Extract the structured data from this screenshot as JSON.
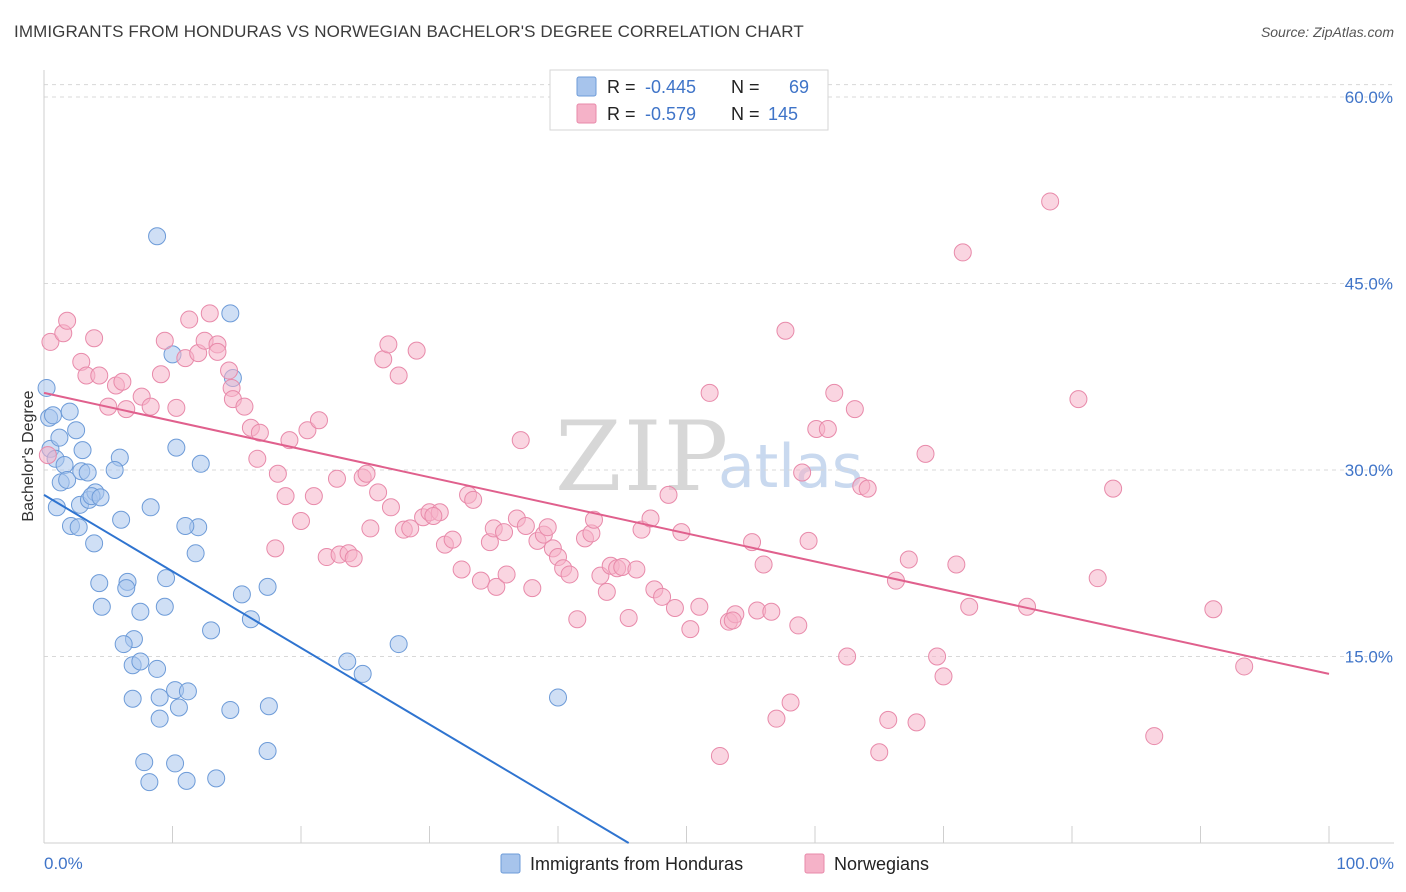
{
  "header": {
    "title": "IMMIGRANTS FROM HONDURAS VS NORWEGIAN BACHELOR'S DEGREE CORRELATION CHART",
    "source": "Source: ZipAtlas.com"
  },
  "watermark": {
    "zip": "ZIP",
    "atlas": "atlas"
  },
  "legend": {
    "r_label": "R =",
    "n_label": "N =",
    "rows": [
      {
        "r": "-0.445",
        "n": "69",
        "color": "#a7c4ec"
      },
      {
        "r": "-0.579",
        "n": "145",
        "color": "#f5b2c8"
      }
    ]
  },
  "colors": {
    "blue_fill": "#a7c4ec",
    "blue_stroke": "#6d9bd8",
    "blue_line": "#2f74d0",
    "pink_fill": "#f5b2c8",
    "pink_stroke": "#e88aaa",
    "pink_line": "#e0608d",
    "label_blue": "#3f74c8",
    "grid": "#d8d8d8"
  },
  "chart_data": {
    "type": "scatter",
    "title": "IMMIGRANTS FROM HONDURAS VS NORWEGIAN BACHELOR'S DEGREE CORRELATION CHART",
    "xlabel": "",
    "ylabel": "Bachelor's Degree",
    "xlim": [
      0,
      100
    ],
    "ylim": [
      0,
      61
    ],
    "x_tick_labels": [
      "0.0%",
      "100.0%"
    ],
    "y_ticks": [
      15,
      30,
      45,
      60
    ],
    "y_tick_labels": [
      "15.0%",
      "30.0%",
      "45.0%",
      "60.0%"
    ],
    "legend_position": "top-center",
    "series": [
      {
        "name": "Immigrants from Honduras",
        "color": "#a7c4ec",
        "trend": {
          "x": [
            0,
            45.5
          ],
          "y": [
            28,
            0
          ]
        },
        "points": [
          [
            0.2,
            36.6
          ],
          [
            0.4,
            34.2
          ],
          [
            0.7,
            34.4
          ],
          [
            0.5,
            31.7
          ],
          [
            0.9,
            30.9
          ],
          [
            1.2,
            32.6
          ],
          [
            1.6,
            30.4
          ],
          [
            1.3,
            29.0
          ],
          [
            1.8,
            29.2
          ],
          [
            1.0,
            27.0
          ],
          [
            2.0,
            34.7
          ],
          [
            2.5,
            33.2
          ],
          [
            3.0,
            31.6
          ],
          [
            2.9,
            29.9
          ],
          [
            3.4,
            29.8
          ],
          [
            2.1,
            25.5
          ],
          [
            2.8,
            27.2
          ],
          [
            3.5,
            27.6
          ],
          [
            4.0,
            28.2
          ],
          [
            3.7,
            27.9
          ],
          [
            4.4,
            27.8
          ],
          [
            2.7,
            25.4
          ],
          [
            3.9,
            24.1
          ],
          [
            5.9,
            31.0
          ],
          [
            5.5,
            30.0
          ],
          [
            6.0,
            26.0
          ],
          [
            8.3,
            27.0
          ],
          [
            8.8,
            48.8
          ],
          [
            10.3,
            31.8
          ],
          [
            12.0,
            25.4
          ],
          [
            11.0,
            25.5
          ],
          [
            12.2,
            30.5
          ],
          [
            10.0,
            39.3
          ],
          [
            14.5,
            42.6
          ],
          [
            14.7,
            37.4
          ],
          [
            11.8,
            23.3
          ],
          [
            9.5,
            21.3
          ],
          [
            4.3,
            20.9
          ],
          [
            4.5,
            19.0
          ],
          [
            6.5,
            21.0
          ],
          [
            6.4,
            20.5
          ],
          [
            7.5,
            18.6
          ],
          [
            9.4,
            19.0
          ],
          [
            7.0,
            16.4
          ],
          [
            6.2,
            16.0
          ],
          [
            13.0,
            17.1
          ],
          [
            15.4,
            20.0
          ],
          [
            16.1,
            18.0
          ],
          [
            17.4,
            20.6
          ],
          [
            6.9,
            14.3
          ],
          [
            7.5,
            14.6
          ],
          [
            8.8,
            14.0
          ],
          [
            9.0,
            11.7
          ],
          [
            6.9,
            11.6
          ],
          [
            10.2,
            12.3
          ],
          [
            11.2,
            12.2
          ],
          [
            10.5,
            10.9
          ],
          [
            14.5,
            10.7
          ],
          [
            9.0,
            10.0
          ],
          [
            17.5,
            11.0
          ],
          [
            23.6,
            14.6
          ],
          [
            24.8,
            13.6
          ],
          [
            27.6,
            16.0
          ],
          [
            40.0,
            11.7
          ],
          [
            7.8,
            6.5
          ],
          [
            10.2,
            6.4
          ],
          [
            11.1,
            5.0
          ],
          [
            13.4,
            5.2
          ],
          [
            8.2,
            4.9
          ],
          [
            17.4,
            7.4
          ]
        ]
      },
      {
        "name": "Norwegians",
        "color": "#f5b2c8",
        "trend": {
          "x": [
            0,
            100
          ],
          "y": [
            36.2,
            13.6
          ]
        },
        "points": [
          [
            0.5,
            40.3
          ],
          [
            0.3,
            31.2
          ],
          [
            1.5,
            41.0
          ],
          [
            1.8,
            42.0
          ],
          [
            3.9,
            40.6
          ],
          [
            2.9,
            38.7
          ],
          [
            3.3,
            37.6
          ],
          [
            4.3,
            37.6
          ],
          [
            5.0,
            35.1
          ],
          [
            5.6,
            36.8
          ],
          [
            6.1,
            37.1
          ],
          [
            6.4,
            34.9
          ],
          [
            7.6,
            35.9
          ],
          [
            8.3,
            35.1
          ],
          [
            9.1,
            37.7
          ],
          [
            10.3,
            35.0
          ],
          [
            9.4,
            40.4
          ],
          [
            11.0,
            39.0
          ],
          [
            11.3,
            42.1
          ],
          [
            12.0,
            39.4
          ],
          [
            12.5,
            40.4
          ],
          [
            12.9,
            42.6
          ],
          [
            13.5,
            40.1
          ],
          [
            13.5,
            39.5
          ],
          [
            14.4,
            38.0
          ],
          [
            14.6,
            36.6
          ],
          [
            14.7,
            35.7
          ],
          [
            15.6,
            35.1
          ],
          [
            16.1,
            33.4
          ],
          [
            16.8,
            33.0
          ],
          [
            16.6,
            30.9
          ],
          [
            18.2,
            29.7
          ],
          [
            18.8,
            27.9
          ],
          [
            19.1,
            32.4
          ],
          [
            20.0,
            25.9
          ],
          [
            20.5,
            33.2
          ],
          [
            21.0,
            27.9
          ],
          [
            21.4,
            34.0
          ],
          [
            18.0,
            23.7
          ],
          [
            22.0,
            23.0
          ],
          [
            22.8,
            29.3
          ],
          [
            23.0,
            23.2
          ],
          [
            23.7,
            23.3
          ],
          [
            24.1,
            22.9
          ],
          [
            24.8,
            29.4
          ],
          [
            25.1,
            29.7
          ],
          [
            25.4,
            25.3
          ],
          [
            26.0,
            28.2
          ],
          [
            26.4,
            38.9
          ],
          [
            26.8,
            40.1
          ],
          [
            27.6,
            37.6
          ],
          [
            27.0,
            27.0
          ],
          [
            28.0,
            25.2
          ],
          [
            28.5,
            25.3
          ],
          [
            29.0,
            39.6
          ],
          [
            29.5,
            26.2
          ],
          [
            30.0,
            26.6
          ],
          [
            30.8,
            26.6
          ],
          [
            30.3,
            26.3
          ],
          [
            31.2,
            24.0
          ],
          [
            31.8,
            24.4
          ],
          [
            32.5,
            22.0
          ],
          [
            33.0,
            28.0
          ],
          [
            33.4,
            27.6
          ],
          [
            34.0,
            21.1
          ],
          [
            34.7,
            24.2
          ],
          [
            35.0,
            25.3
          ],
          [
            35.2,
            20.6
          ],
          [
            35.8,
            25.0
          ],
          [
            36.0,
            21.6
          ],
          [
            36.8,
            26.1
          ],
          [
            37.1,
            32.4
          ],
          [
            37.5,
            25.5
          ],
          [
            38.0,
            20.5
          ],
          [
            38.4,
            24.3
          ],
          [
            38.9,
            24.8
          ],
          [
            39.2,
            25.4
          ],
          [
            39.6,
            23.7
          ],
          [
            40.0,
            23.0
          ],
          [
            40.4,
            22.1
          ],
          [
            40.9,
            21.6
          ],
          [
            41.5,
            18.0
          ],
          [
            42.1,
            24.5
          ],
          [
            42.6,
            24.9
          ],
          [
            42.8,
            26.0
          ],
          [
            43.3,
            21.5
          ],
          [
            43.8,
            20.2
          ],
          [
            44.1,
            22.3
          ],
          [
            44.6,
            22.1
          ],
          [
            45.0,
            22.2
          ],
          [
            45.5,
            18.1
          ],
          [
            46.1,
            22.0
          ],
          [
            46.5,
            25.2
          ],
          [
            47.2,
            26.1
          ],
          [
            47.5,
            20.4
          ],
          [
            48.1,
            19.8
          ],
          [
            48.6,
            28.0
          ],
          [
            49.1,
            18.9
          ],
          [
            49.6,
            25.0
          ],
          [
            50.3,
            17.2
          ],
          [
            51.0,
            19.0
          ],
          [
            51.8,
            36.2
          ],
          [
            52.6,
            7.0
          ],
          [
            53.3,
            17.8
          ],
          [
            53.8,
            18.4
          ],
          [
            53.6,
            17.9
          ],
          [
            55.1,
            24.2
          ],
          [
            55.5,
            18.7
          ],
          [
            56.0,
            22.4
          ],
          [
            56.6,
            18.6
          ],
          [
            57.0,
            10.0
          ],
          [
            57.7,
            41.2
          ],
          [
            58.1,
            11.3
          ],
          [
            58.7,
            17.5
          ],
          [
            59.0,
            29.8
          ],
          [
            59.5,
            24.3
          ],
          [
            60.1,
            33.3
          ],
          [
            61.0,
            33.3
          ],
          [
            61.5,
            36.2
          ],
          [
            62.5,
            15.0
          ],
          [
            63.1,
            34.9
          ],
          [
            63.6,
            28.7
          ],
          [
            64.1,
            28.5
          ],
          [
            65.0,
            7.3
          ],
          [
            65.7,
            9.9
          ],
          [
            66.3,
            21.1
          ],
          [
            67.3,
            22.8
          ],
          [
            67.9,
            9.7
          ],
          [
            68.6,
            31.3
          ],
          [
            69.5,
            15.0
          ],
          [
            70.0,
            13.4
          ],
          [
            71.0,
            22.4
          ],
          [
            71.5,
            47.5
          ],
          [
            72.0,
            19.0
          ],
          [
            76.5,
            19.0
          ],
          [
            78.3,
            51.6
          ],
          [
            80.5,
            35.7
          ],
          [
            82.0,
            21.3
          ],
          [
            83.2,
            28.5
          ],
          [
            86.4,
            8.6
          ],
          [
            91.0,
            18.8
          ],
          [
            93.4,
            14.2
          ]
        ]
      }
    ]
  }
}
